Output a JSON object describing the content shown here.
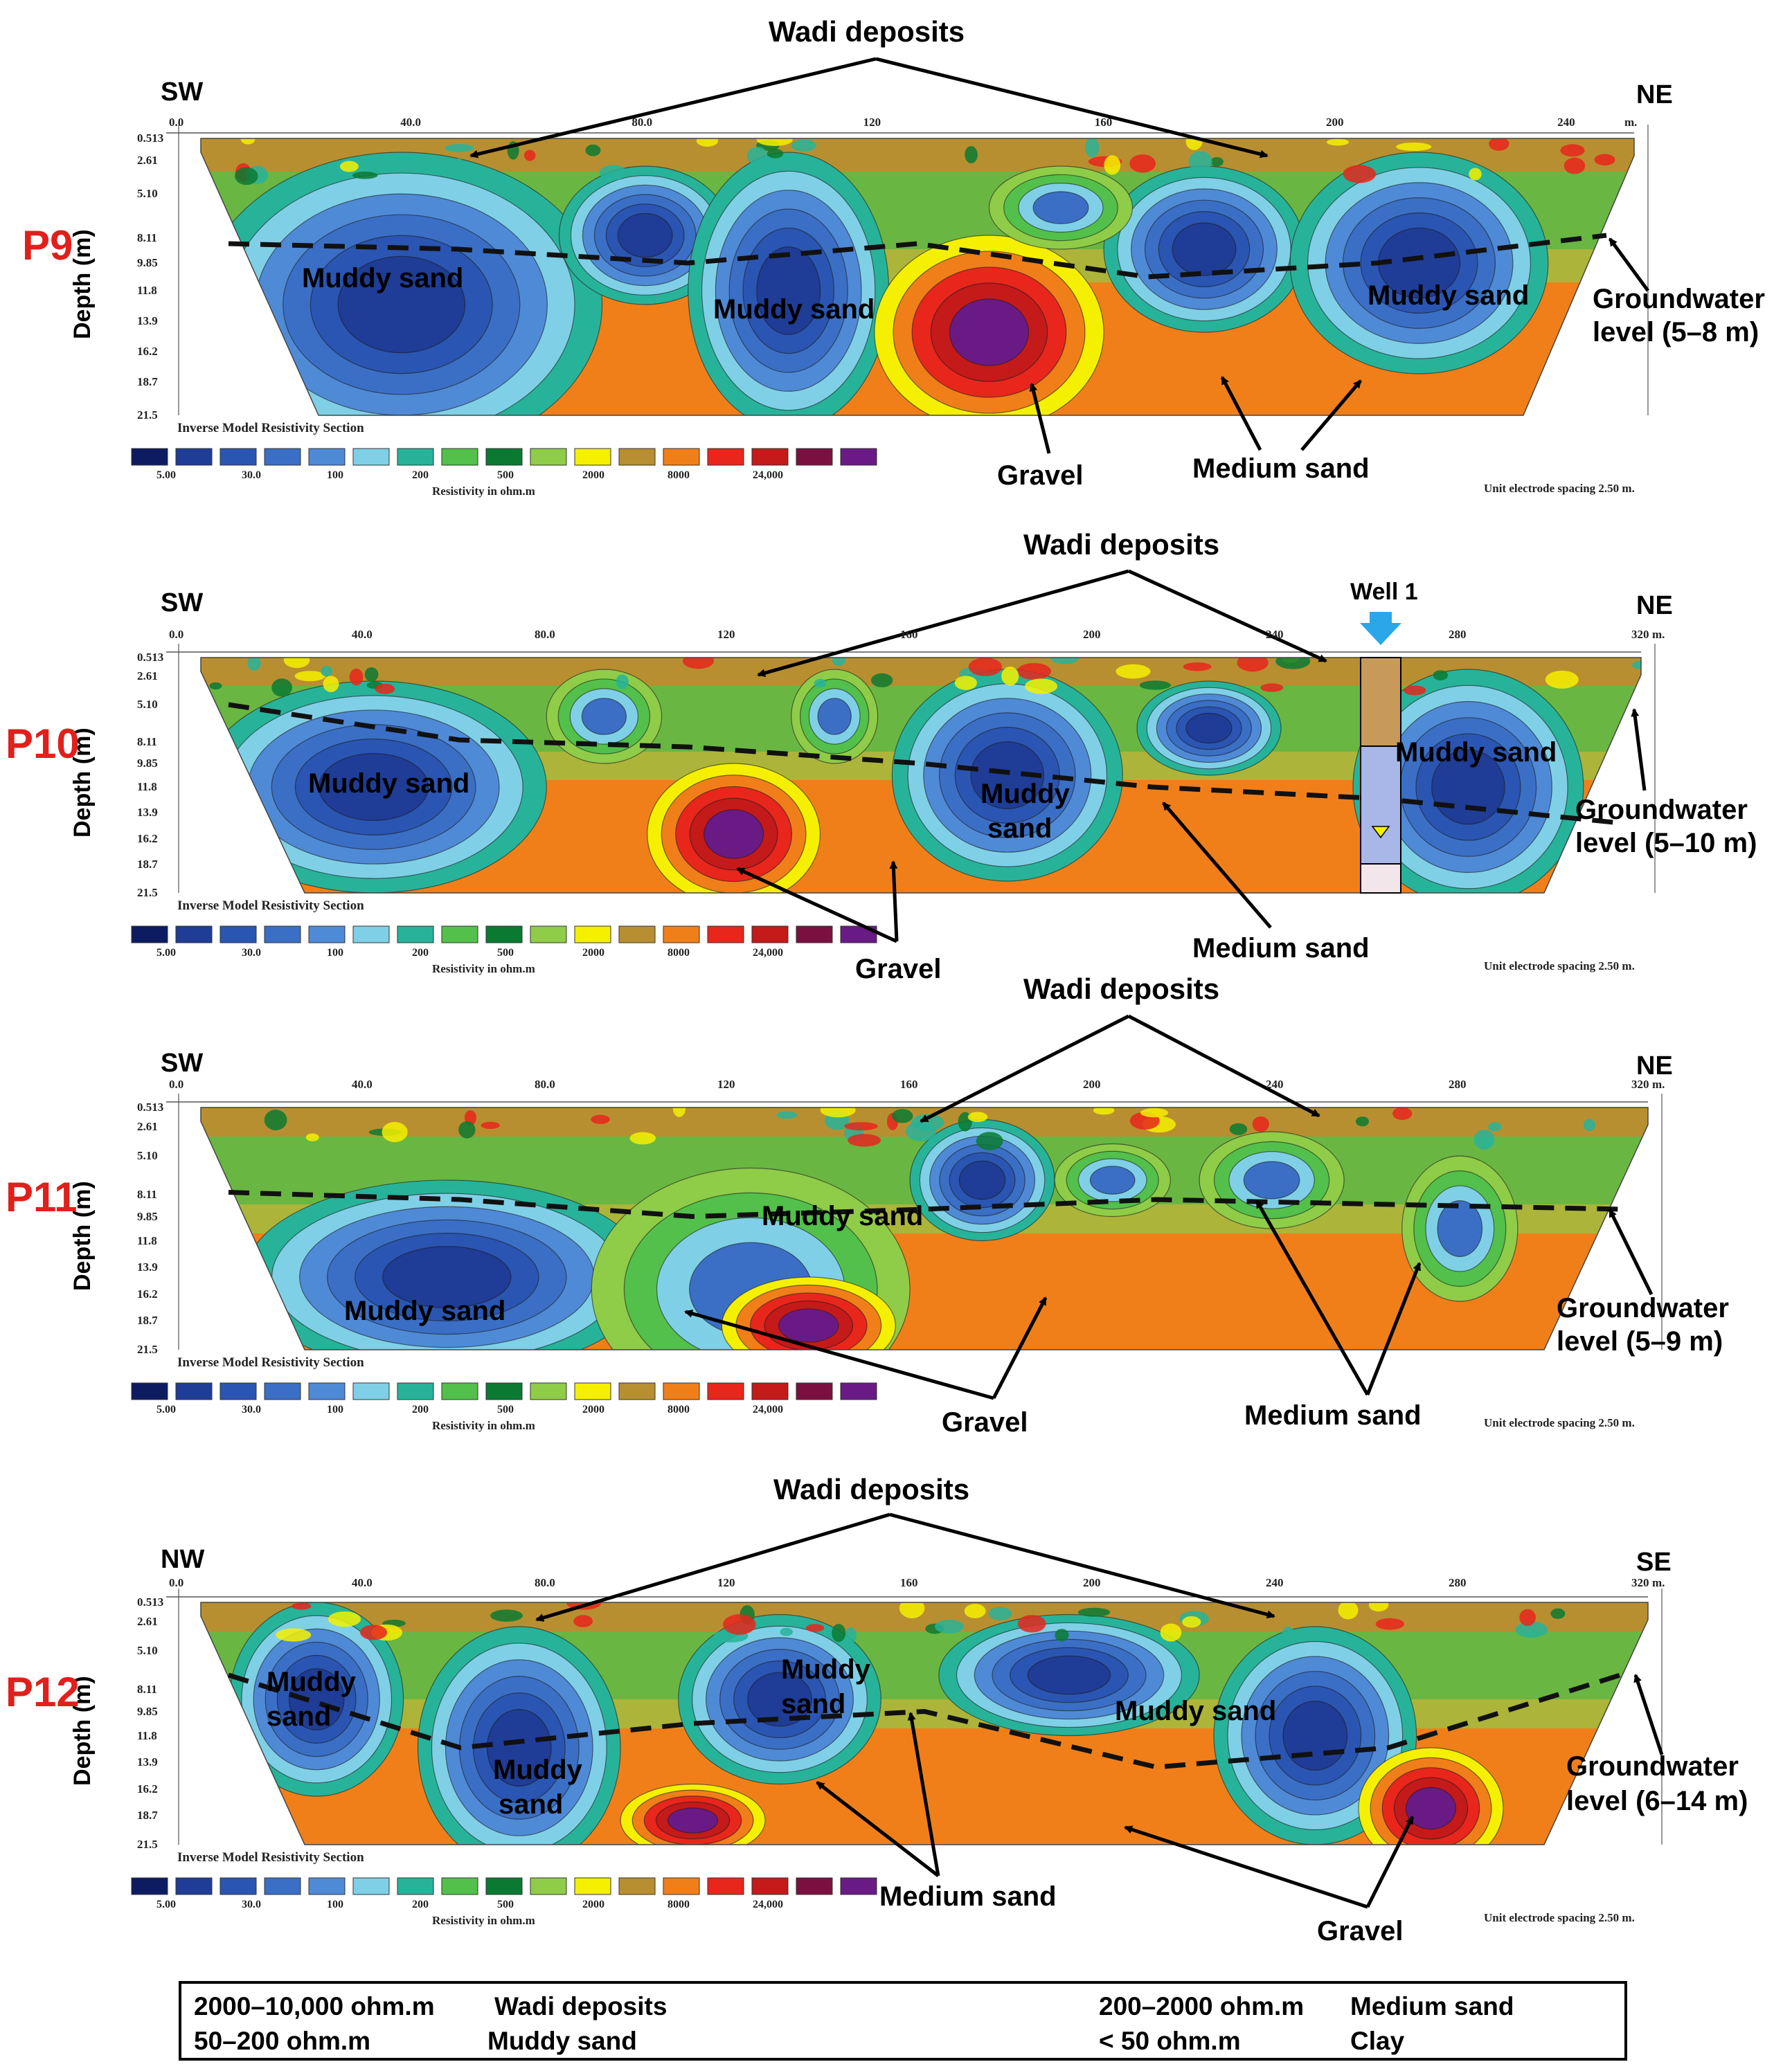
{
  "colors": {
    "scale": [
      "#0d1b60",
      "#1f3c96",
      "#2a55b2",
      "#3a6fc5",
      "#4f8ad7",
      "#7fd0e6",
      "#27b39a",
      "#52c04a",
      "#0a7a32",
      "#8fcc48",
      "#f4f000",
      "#b88f30",
      "#f07f1a",
      "#e8261c",
      "#c41a1a",
      "#7a1040",
      "#6a1a85"
    ],
    "panel_label": "#e0201c",
    "well_arrow": "#29a7e8"
  },
  "panels": [
    {
      "id": "P9",
      "left_dir": "SW",
      "right_dir": "NE",
      "x_ticks": [
        "0.0",
        "40.0",
        "80.0",
        "120",
        "160",
        "200",
        "240"
      ],
      "unit": "m.",
      "depth_ticks": [
        "0.513",
        "2.61",
        "5.10",
        "8.11",
        "9.85",
        "11.8",
        "13.9",
        "16.2",
        "18.7",
        "21.5"
      ],
      "ylabel": "Depth (m)",
      "section_title": "Inverse Model Resistivity Section",
      "scale_labels": [
        "5.00",
        "30.0",
        "100",
        "200",
        "500",
        "2000",
        "8000",
        "24,000"
      ],
      "resistivity_label": "Resistivity in ohm.m",
      "spacing": "Unit electrode spacing 2.50 m.",
      "annotations": {
        "wadi": "Wadi deposits",
        "muddy": [
          "Muddy sand",
          "Muddy sand",
          "Muddy sand"
        ],
        "gravel": "Gravel",
        "medium": "Medium sand",
        "gw1": "Groundwater",
        "gw2": "level (5–8 m)"
      }
    },
    {
      "id": "P10",
      "left_dir": "SW",
      "right_dir": "NE",
      "x_ticks": [
        "0.0",
        "40.0",
        "80.0",
        "120",
        "160",
        "200",
        "240",
        "280",
        "320"
      ],
      "unit": "m.",
      "depth_ticks": [
        "0.513",
        "2.61",
        "5.10",
        "8.11",
        "9.85",
        "11.8",
        "13.9",
        "16.2",
        "18.7",
        "21.5"
      ],
      "ylabel": "Depth (m)",
      "section_title": "Inverse Model Resistivity Section",
      "scale_labels": [
        "5.00",
        "30.0",
        "100",
        "200",
        "500",
        "2000",
        "8000",
        "24,000"
      ],
      "resistivity_label": "Resistivity in ohm.m",
      "spacing": "Unit electrode spacing 2.50 m.",
      "annotations": {
        "wadi": "Wadi deposits",
        "well": "Well 1",
        "muddy": [
          "Muddy sand",
          "Muddy",
          "sand",
          "Muddy sand"
        ],
        "gravel": "Gravel",
        "medium": "Medium sand",
        "gw1": "Groundwater",
        "gw2": "level (5–10 m)"
      }
    },
    {
      "id": "P11",
      "left_dir": "SW",
      "right_dir": "NE",
      "x_ticks": [
        "0.0",
        "40.0",
        "80.0",
        "120",
        "160",
        "200",
        "240",
        "280",
        "320"
      ],
      "unit": "m.",
      "depth_ticks": [
        "0.513",
        "2.61",
        "5.10",
        "8.11",
        "9.85",
        "11.8",
        "13.9",
        "16.2",
        "18.7",
        "21.5"
      ],
      "ylabel": "Depth (m)",
      "section_title": "Inverse Model Resistivity Section",
      "scale_labels": [
        "5.00",
        "30.0",
        "100",
        "200",
        "500",
        "2000",
        "8000",
        "24,000"
      ],
      "resistivity_label": "Resistivity in ohm.m",
      "spacing": "Unit electrode spacing 2.50 m.",
      "annotations": {
        "wadi": "Wadi deposits",
        "muddy": [
          "Muddy sand",
          "Muddy sand"
        ],
        "gravel": "Gravel",
        "medium": "Medium sand",
        "gw1": "Groundwater",
        "gw2": "level (5–9 m)"
      }
    },
    {
      "id": "P12",
      "left_dir": "NW",
      "right_dir": "SE",
      "x_ticks": [
        "0.0",
        "40.0",
        "80.0",
        "120",
        "160",
        "200",
        "240",
        "280",
        "320"
      ],
      "unit": "m.",
      "depth_ticks": [
        "0.513",
        "2.61",
        "5.10",
        "8.11",
        "9.85",
        "11.8",
        "13.9",
        "16.2",
        "18.7",
        "21.5"
      ],
      "ylabel": "Depth (m)",
      "section_title": "Inverse Model Resistivity Section",
      "scale_labels": [
        "5.00",
        "30.0",
        "100",
        "200",
        "500",
        "2000",
        "8000",
        "24,000"
      ],
      "resistivity_label": "Resistivity in ohm.m",
      "spacing": "Unit electrode spacing 2.50 m.",
      "annotations": {
        "wadi": "Wadi deposits",
        "muddy": [
          "Muddy",
          "sand",
          "Muddy",
          "sand",
          "Muddy",
          "sand",
          "Muddy sand"
        ],
        "gravel": "Gravel",
        "medium": "Medium sand",
        "gw1": "Groundwater",
        "gw2": "level (6–14 m)"
      }
    }
  ],
  "summary": {
    "rows": [
      [
        "2000–10,000 ohm.m",
        "Wadi deposits",
        "200–2000 ohm.m",
        "Medium sand"
      ],
      [
        "50–200 ohm.m",
        "Muddy sand",
        "< 50 ohm.m",
        "Clay"
      ]
    ]
  }
}
